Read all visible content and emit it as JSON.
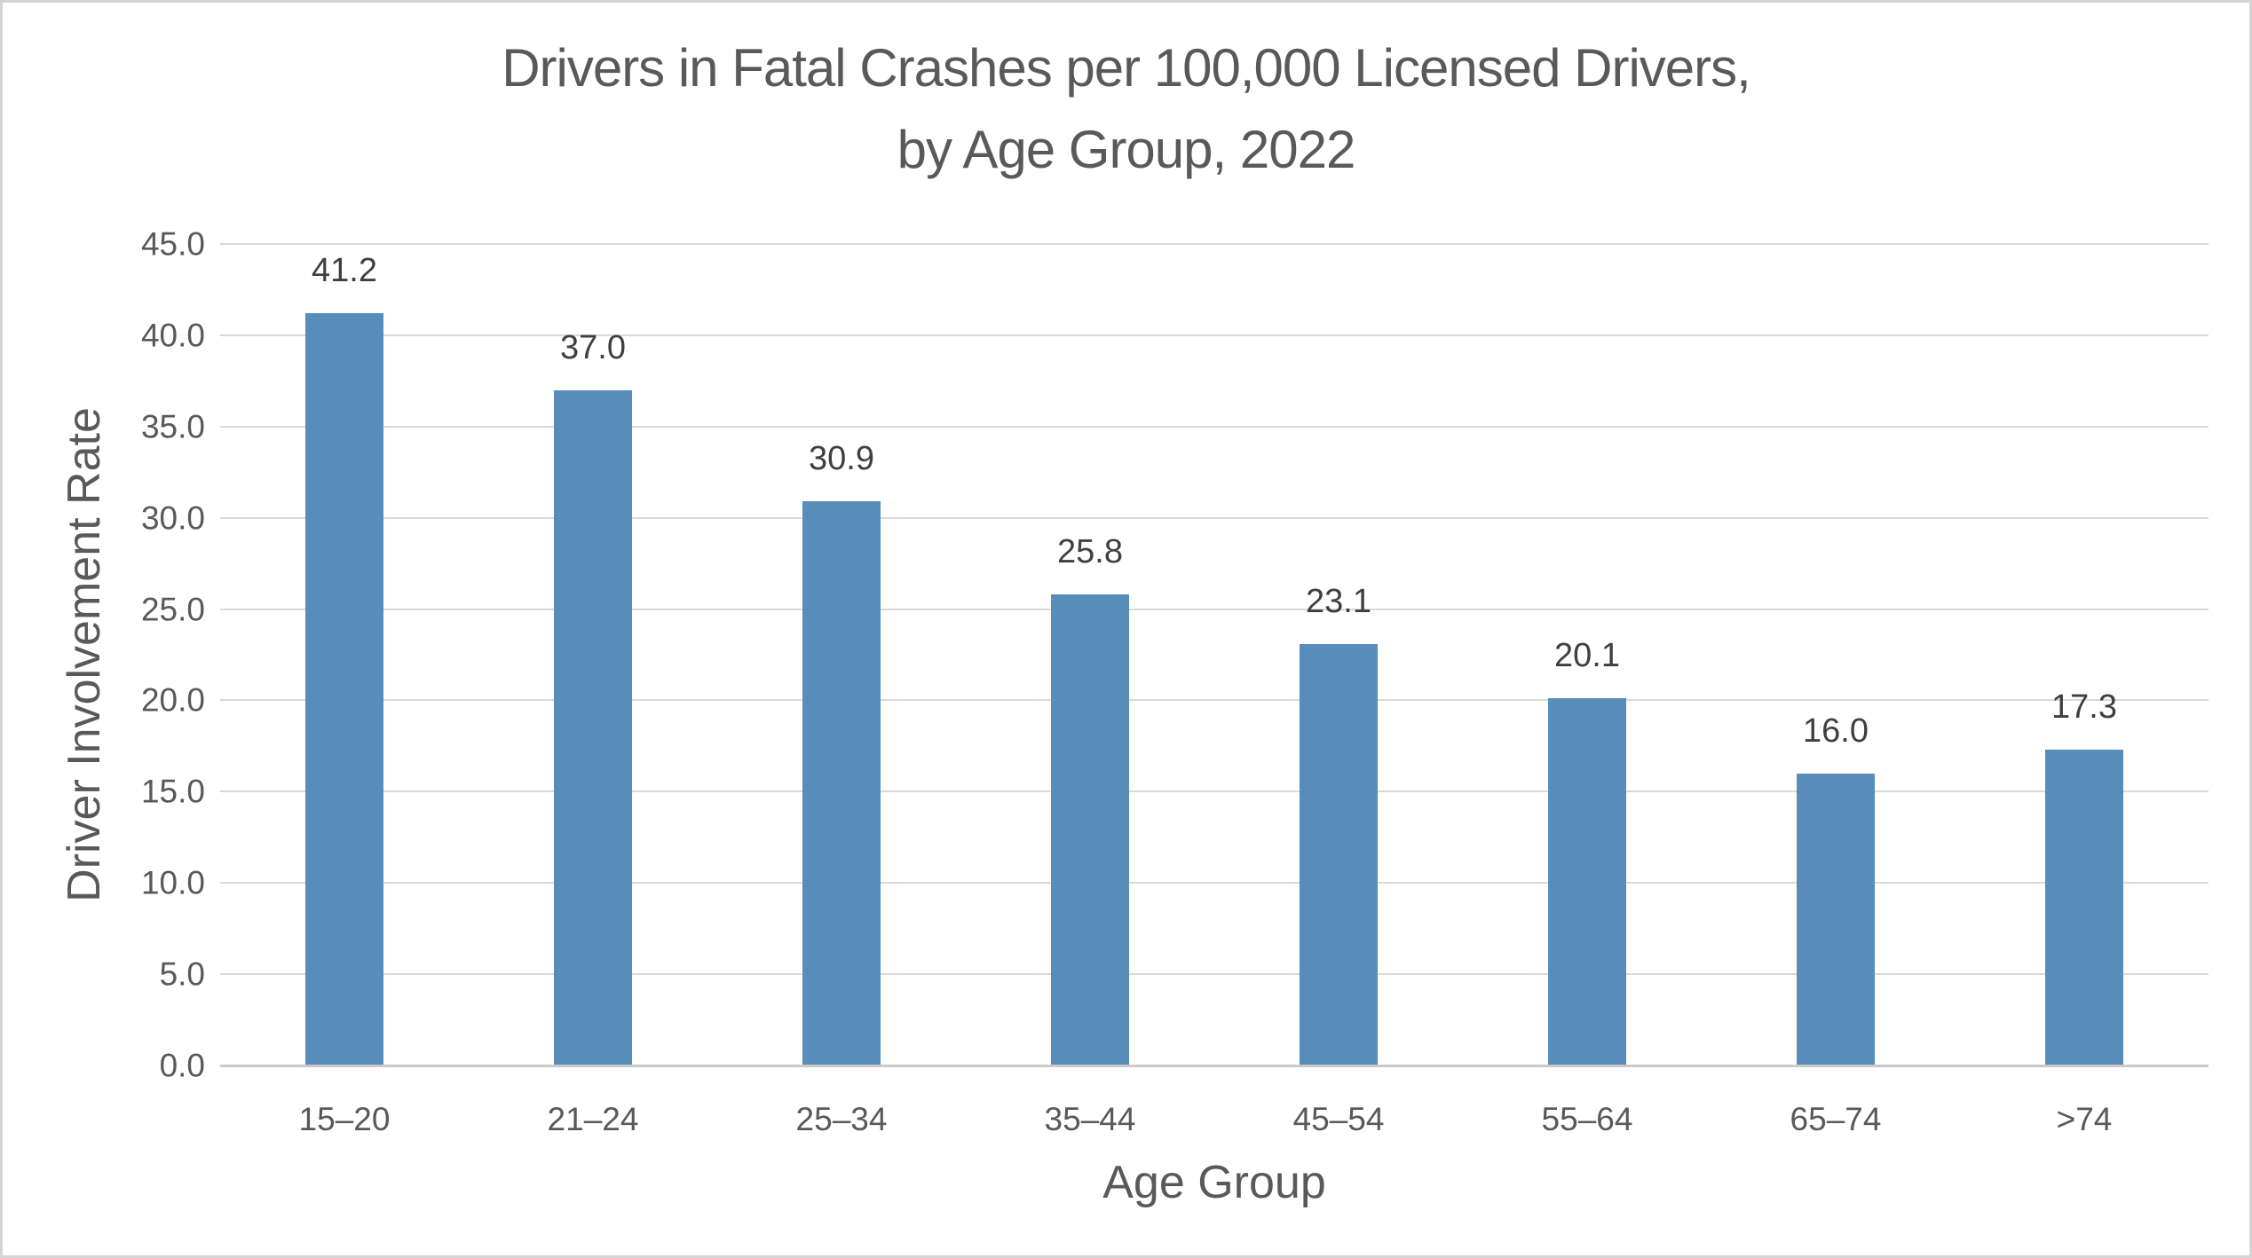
{
  "page": {
    "background": "#ffffff",
    "border_color": "#d4d4d4"
  },
  "chart_data": {
    "type": "bar",
    "title_line1": "Drivers in Fatal Crashes per 100,000 Licensed Drivers,",
    "title_line2": "by Age Group, 2022",
    "xlabel": "Age Group",
    "ylabel": "Driver Involvement Rate",
    "categories": [
      "15–20",
      "21–24",
      "25–34",
      "35–44",
      "45–54",
      "55–64",
      "65–74",
      ">74"
    ],
    "values": [
      41.2,
      37.0,
      30.9,
      25.8,
      23.1,
      20.1,
      16.0,
      17.3
    ],
    "data_labels": [
      "41.2",
      "37.0",
      "30.9",
      "25.8",
      "23.1",
      "20.1",
      "16.0",
      "17.3"
    ],
    "ylim": [
      0,
      45
    ],
    "ytick_step": 5,
    "ytick_labels": [
      "0.0",
      "5.0",
      "10.0",
      "15.0",
      "20.0",
      "25.0",
      "30.0",
      "35.0",
      "40.0",
      "45.0"
    ],
    "grid": true,
    "legend": false,
    "colors": {
      "bar": "#588cba",
      "text": "#595959",
      "data_label": "#3f3f3f",
      "gridline": "#d9d9d9",
      "axis_line": "#c9c9c9"
    }
  }
}
